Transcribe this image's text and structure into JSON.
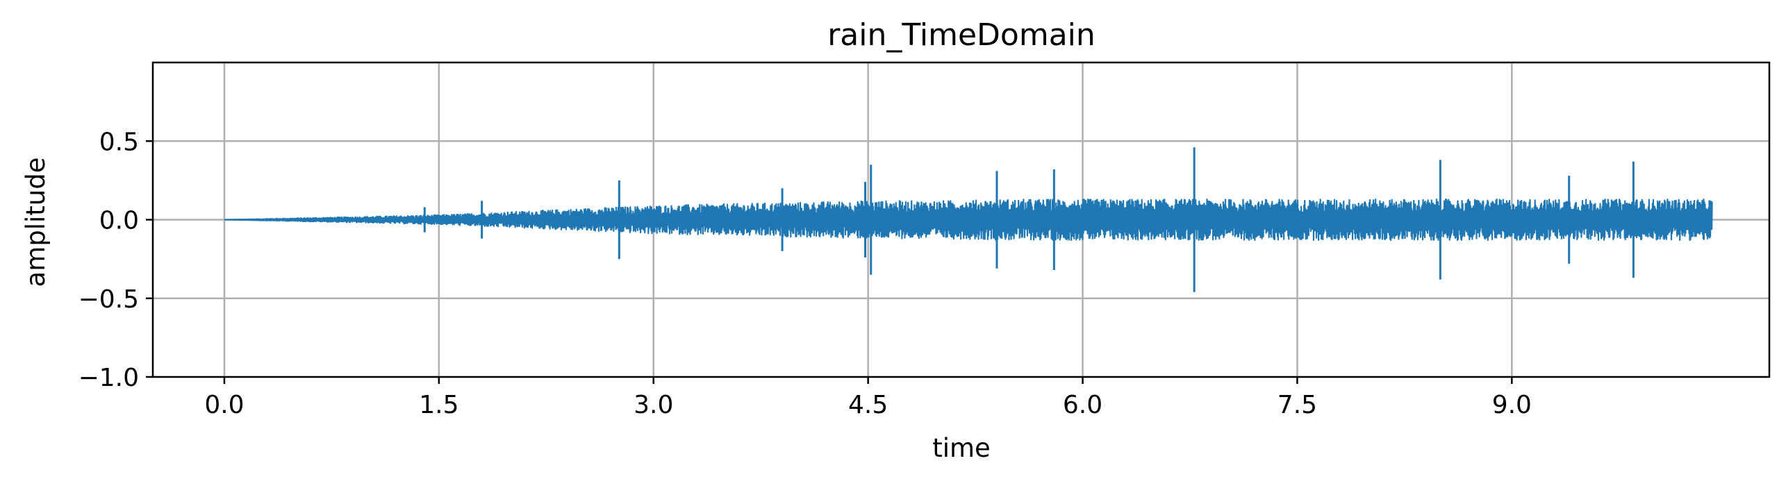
{
  "chart_data": {
    "type": "line",
    "title": "rain_TimeDomain",
    "xlabel": "time",
    "ylabel": "amplitude",
    "xlim": [
      -0.5,
      10.8
    ],
    "ylim": [
      -1.0,
      1.0
    ],
    "x_ticks": [
      0.0,
      1.5,
      3.0,
      4.5,
      6.0,
      7.5,
      9.0
    ],
    "x_tick_labels": [
      "0.0",
      "1.5",
      "3.0",
      "4.5",
      "6.0",
      "7.5",
      "9.0"
    ],
    "y_ticks": [
      -1.0,
      -0.5,
      0.0,
      0.5
    ],
    "y_tick_labels": [
      "−1.0",
      "−0.5",
      "0.0",
      "0.5"
    ],
    "grid": true,
    "series": [
      {
        "color": "#1f77b4",
        "x_range": [
          0.0,
          10.4
        ],
        "envelope": {
          "x": [
            0.0,
            0.5,
            1.0,
            1.5,
            2.0,
            2.5,
            3.0,
            3.5,
            4.0,
            4.5,
            5.0,
            5.5,
            6.0,
            6.5,
            7.0,
            7.5,
            8.0,
            8.5,
            9.0,
            9.5,
            10.0,
            10.4
          ],
          "y": [
            0.0,
            0.01,
            0.02,
            0.03,
            0.05,
            0.07,
            0.09,
            0.1,
            0.11,
            0.12,
            0.12,
            0.13,
            0.13,
            0.13,
            0.13,
            0.13,
            0.13,
            0.13,
            0.13,
            0.13,
            0.13,
            0.13
          ]
        },
        "spikes": [
          {
            "x": 1.4,
            "y": 0.08
          },
          {
            "x": 1.8,
            "y": 0.12
          },
          {
            "x": 2.76,
            "y": 0.25
          },
          {
            "x": 3.9,
            "y": 0.2
          },
          {
            "x": 4.48,
            "y": 0.24
          },
          {
            "x": 4.52,
            "y": 0.35
          },
          {
            "x": 5.4,
            "y": 0.31
          },
          {
            "x": 5.8,
            "y": 0.32
          },
          {
            "x": 6.78,
            "y": 0.46
          },
          {
            "x": 8.5,
            "y": 0.38
          },
          {
            "x": 9.4,
            "y": 0.28
          },
          {
            "x": 9.85,
            "y": 0.37
          }
        ]
      }
    ]
  }
}
